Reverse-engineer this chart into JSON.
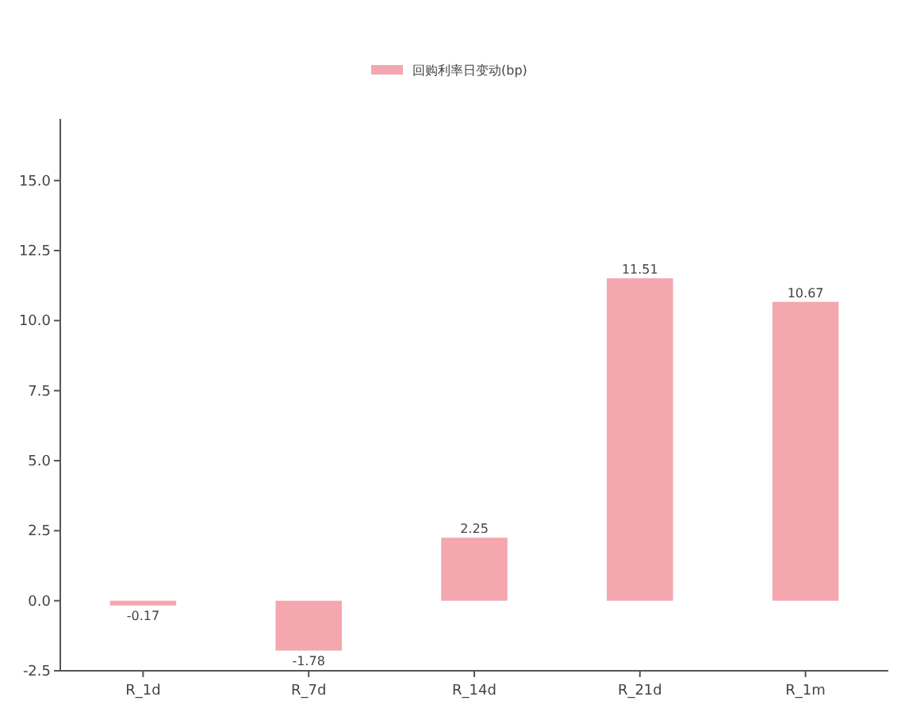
{
  "chart_data": {
    "type": "bar",
    "categories": [
      "R_1d",
      "R_7d",
      "R_14d",
      "R_21d",
      "R_1m"
    ],
    "series": [
      {
        "name": "回购利率日变动(bp)",
        "color": "#f4a7ae",
        "values": [
          -0.17,
          -1.78,
          2.25,
          11.51,
          10.67
        ]
      }
    ],
    "ylim": [
      -2.5,
      17.2
    ],
    "yticks": [
      -2.5,
      {
        "value": 0,
        "label": "0.0"
      },
      2.5,
      {
        "value": 5,
        "label": "5.0"
      },
      7.5,
      {
        "value": 10,
        "label": "10.0"
      },
      12.5,
      {
        "value": 15,
        "label": "15.0"
      }
    ],
    "data_labels": true,
    "legend": "top",
    "grid": false
  }
}
